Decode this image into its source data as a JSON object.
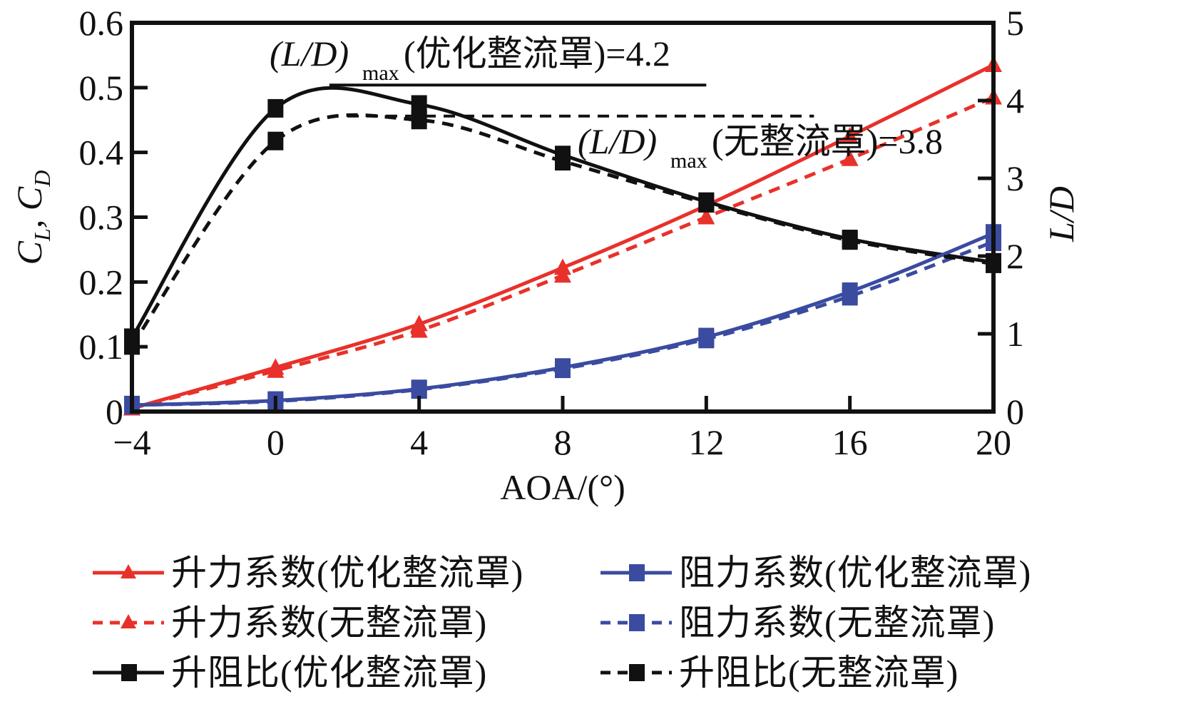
{
  "chart_data": {
    "type": "line",
    "title": "",
    "xlabel": "AOA/(°)",
    "ylabel_left": "CL, CD",
    "ylabel_right": "L/D",
    "x": [
      -4,
      0,
      4,
      8,
      12,
      16,
      20
    ],
    "xlim": [
      -4,
      20
    ],
    "ylim_left": [
      0,
      0.6
    ],
    "ylim_right": [
      0,
      5
    ],
    "xticks": [
      "−4",
      "0",
      "4",
      "8",
      "12",
      "16",
      "20"
    ],
    "yticks_left": [
      "0",
      "0.1",
      "0.2",
      "0.3",
      "0.4",
      "0.5",
      "0.6"
    ],
    "yticks_right": [
      "0",
      "1",
      "2",
      "3",
      "4",
      "5"
    ],
    "grid": false,
    "legend_position": "bottom",
    "series": [
      {
        "name": "升力系数(优化整流罩)",
        "axis": "left",
        "color": "#e8312a",
        "dash": false,
        "marker": "triangle",
        "values": [
          0.005,
          0.068,
          0.135,
          0.222,
          0.318,
          0.425,
          0.535
        ]
      },
      {
        "name": "升力系数(无整流罩)",
        "axis": "left",
        "color": "#e8312a",
        "dash": true,
        "marker": "triangle",
        "values": [
          0.005,
          0.063,
          0.125,
          0.21,
          0.3,
          0.39,
          0.485
        ]
      },
      {
        "name": "升阻比(优化整流罩)",
        "axis": "right",
        "color": "#111111",
        "dash": false,
        "marker": "square",
        "values": [
          0.95,
          3.9,
          3.95,
          3.3,
          2.7,
          2.22,
          1.92
        ]
      },
      {
        "name": "阻力系数(优化整流罩)",
        "axis": "left",
        "color": "#3a4ba0",
        "dash": false,
        "marker": "square",
        "values": [
          0.01,
          0.017,
          0.035,
          0.068,
          0.115,
          0.185,
          0.275
        ]
      },
      {
        "name": "阻力系数(无整流罩)",
        "axis": "left",
        "color": "#3a4ba0",
        "dash": true,
        "marker": "square",
        "values": [
          0.01,
          0.016,
          0.034,
          0.066,
          0.112,
          0.178,
          0.262
        ]
      },
      {
        "name": "升阻比(无整流罩)",
        "axis": "right",
        "color": "#111111",
        "dash": true,
        "marker": "square",
        "values": [
          0.85,
          3.48,
          3.75,
          3.22,
          2.68,
          2.2,
          1.9
        ]
      }
    ],
    "annotations": [
      {
        "text_main": "(L/D)",
        "sub": "max",
        "text_tail": "(优化整流罩)=4.2",
        "value": 4.2,
        "axis": "right",
        "line": "solid",
        "x_range": [
          1.5,
          12
        ]
      },
      {
        "text_main": "(L/D)",
        "sub": "max",
        "text_tail": "(无整流罩)=3.8",
        "value": 3.8,
        "axis": "right",
        "line": "dashed",
        "x_range": [
          2,
          15
        ]
      }
    ]
  }
}
